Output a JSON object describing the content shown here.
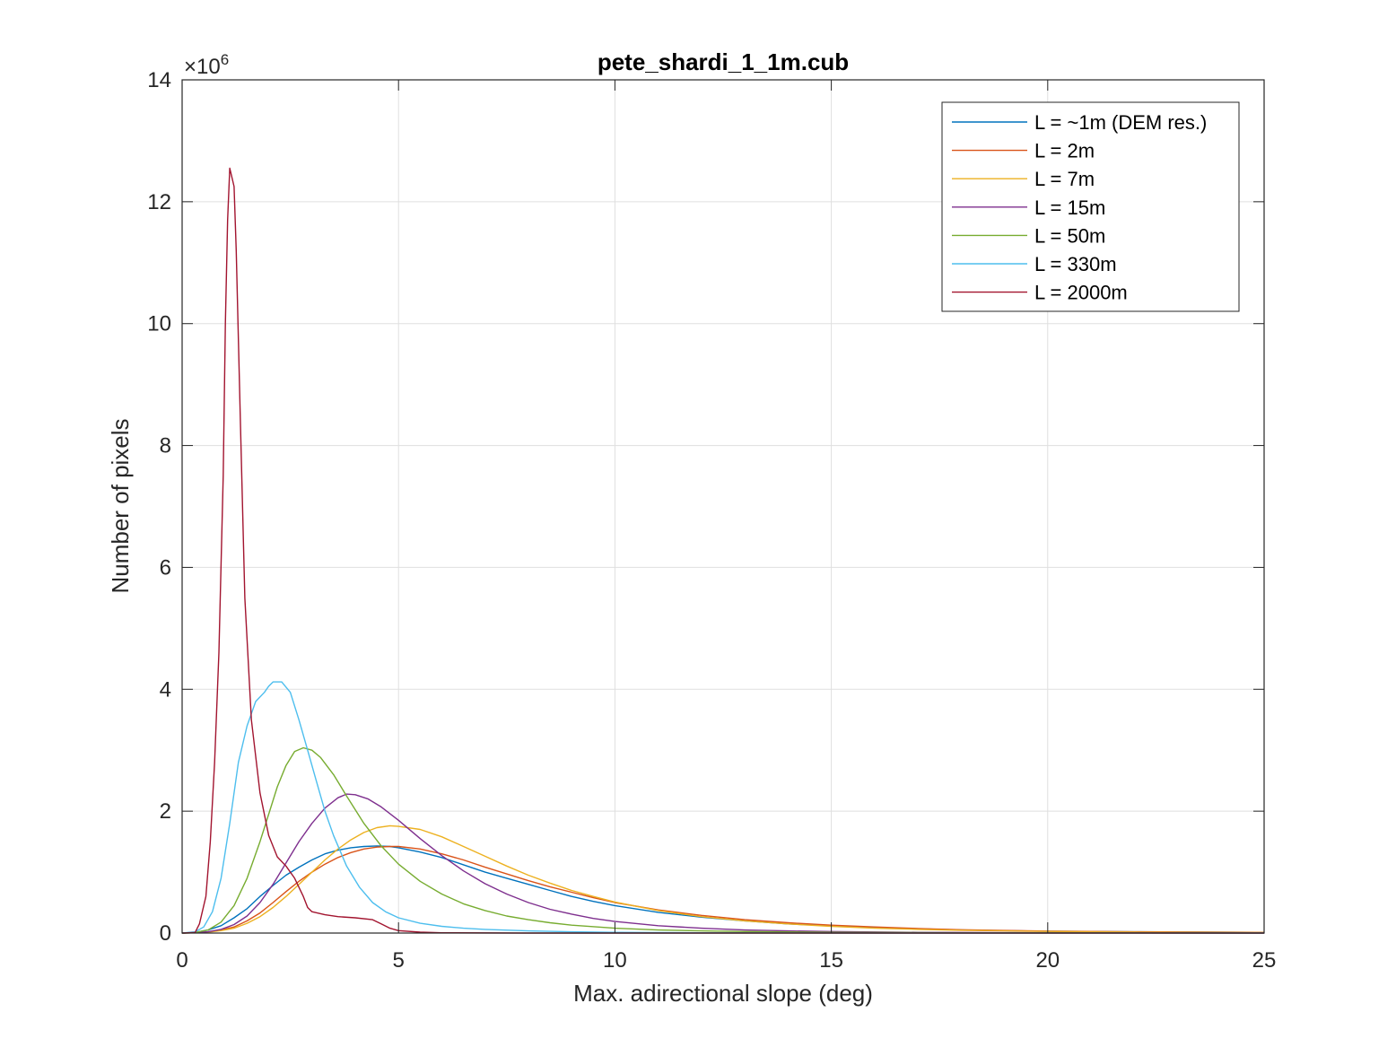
{
  "chart_data": {
    "type": "line",
    "title": "pete_shardi_1_1m.cub",
    "xlabel": "Max. adirectional slope (deg)",
    "ylabel": "Number of pixels",
    "y_multiplier": "×10",
    "y_multiplier_exponent": "6",
    "xlim": [
      0,
      25
    ],
    "ylim": [
      0,
      14
    ],
    "x_ticks": [
      0,
      5,
      10,
      15,
      20,
      25
    ],
    "y_ticks": [
      0,
      2,
      4,
      6,
      8,
      10,
      12,
      14
    ],
    "x_tick_labels": [
      "0",
      "5",
      "10",
      "15",
      "20",
      "25"
    ],
    "y_tick_labels": [
      "0",
      "2",
      "4",
      "6",
      "8",
      "10",
      "12",
      "14"
    ],
    "grid": true,
    "legend_position": "top-right",
    "series": [
      {
        "name": "L = ~1m (DEM res.)",
        "color": "#0072BD",
        "points": [
          [
            0,
            0
          ],
          [
            0.3,
            0.01
          ],
          [
            0.6,
            0.05
          ],
          [
            0.9,
            0.12
          ],
          [
            1.2,
            0.25
          ],
          [
            1.5,
            0.4
          ],
          [
            1.8,
            0.6
          ],
          [
            2.1,
            0.78
          ],
          [
            2.4,
            0.95
          ],
          [
            2.7,
            1.08
          ],
          [
            3.0,
            1.2
          ],
          [
            3.3,
            1.3
          ],
          [
            3.6,
            1.36
          ],
          [
            3.9,
            1.4
          ],
          [
            4.2,
            1.42
          ],
          [
            4.5,
            1.43
          ],
          [
            4.8,
            1.42
          ],
          [
            5.0,
            1.4
          ],
          [
            5.5,
            1.33
          ],
          [
            6.0,
            1.24
          ],
          [
            6.5,
            1.12
          ],
          [
            7.0,
            1.0
          ],
          [
            7.5,
            0.9
          ],
          [
            8.0,
            0.8
          ],
          [
            8.5,
            0.7
          ],
          [
            9.0,
            0.6
          ],
          [
            9.5,
            0.52
          ],
          [
            10.0,
            0.45
          ],
          [
            11.0,
            0.34
          ],
          [
            12.0,
            0.26
          ],
          [
            13.0,
            0.2
          ],
          [
            14.0,
            0.15
          ],
          [
            15.0,
            0.12
          ],
          [
            16.0,
            0.09
          ],
          [
            17.0,
            0.07
          ],
          [
            18.0,
            0.05
          ],
          [
            19.0,
            0.04
          ],
          [
            20.0,
            0.03
          ],
          [
            22.0,
            0.02
          ],
          [
            25.0,
            0.01
          ]
        ]
      },
      {
        "name": "L = 2m",
        "color": "#D95319",
        "points": [
          [
            0,
            0
          ],
          [
            0.3,
            0.005
          ],
          [
            0.6,
            0.02
          ],
          [
            0.9,
            0.05
          ],
          [
            1.2,
            0.1
          ],
          [
            1.5,
            0.2
          ],
          [
            1.8,
            0.33
          ],
          [
            2.1,
            0.5
          ],
          [
            2.4,
            0.68
          ],
          [
            2.7,
            0.85
          ],
          [
            3.0,
            1.0
          ],
          [
            3.3,
            1.13
          ],
          [
            3.6,
            1.24
          ],
          [
            3.9,
            1.32
          ],
          [
            4.2,
            1.38
          ],
          [
            4.5,
            1.41
          ],
          [
            4.8,
            1.42
          ],
          [
            5.0,
            1.42
          ],
          [
            5.5,
            1.38
          ],
          [
            6.0,
            1.3
          ],
          [
            6.5,
            1.2
          ],
          [
            7.0,
            1.08
          ],
          [
            7.5,
            0.97
          ],
          [
            8.0,
            0.86
          ],
          [
            8.5,
            0.76
          ],
          [
            9.0,
            0.67
          ],
          [
            9.5,
            0.58
          ],
          [
            10.0,
            0.5
          ],
          [
            11.0,
            0.38
          ],
          [
            12.0,
            0.29
          ],
          [
            13.0,
            0.22
          ],
          [
            14.0,
            0.17
          ],
          [
            15.0,
            0.13
          ],
          [
            16.0,
            0.1
          ],
          [
            17.0,
            0.075
          ],
          [
            18.0,
            0.055
          ],
          [
            19.0,
            0.042
          ],
          [
            20.0,
            0.032
          ],
          [
            22.0,
            0.02
          ],
          [
            25.0,
            0.01
          ]
        ]
      },
      {
        "name": "L = 7m",
        "color": "#EDB120",
        "points": [
          [
            0,
            0
          ],
          [
            0.3,
            0.005
          ],
          [
            0.6,
            0.015
          ],
          [
            0.9,
            0.04
          ],
          [
            1.2,
            0.08
          ],
          [
            1.5,
            0.16
          ],
          [
            1.8,
            0.27
          ],
          [
            2.1,
            0.42
          ],
          [
            2.4,
            0.6
          ],
          [
            2.7,
            0.8
          ],
          [
            3.0,
            1.0
          ],
          [
            3.3,
            1.2
          ],
          [
            3.6,
            1.38
          ],
          [
            3.9,
            1.53
          ],
          [
            4.2,
            1.65
          ],
          [
            4.5,
            1.73
          ],
          [
            4.8,
            1.76
          ],
          [
            5.0,
            1.75
          ],
          [
            5.5,
            1.7
          ],
          [
            6.0,
            1.58
          ],
          [
            6.5,
            1.42
          ],
          [
            7.0,
            1.26
          ],
          [
            7.5,
            1.1
          ],
          [
            8.0,
            0.95
          ],
          [
            8.5,
            0.82
          ],
          [
            9.0,
            0.7
          ],
          [
            9.5,
            0.6
          ],
          [
            10.0,
            0.51
          ],
          [
            11.0,
            0.37
          ],
          [
            12.0,
            0.27
          ],
          [
            13.0,
            0.2
          ],
          [
            14.0,
            0.15
          ],
          [
            15.0,
            0.11
          ],
          [
            16.0,
            0.08
          ],
          [
            17.0,
            0.06
          ],
          [
            18.0,
            0.045
          ],
          [
            19.0,
            0.035
          ],
          [
            20.0,
            0.026
          ],
          [
            22.0,
            0.015
          ],
          [
            25.0,
            0.008
          ]
        ]
      },
      {
        "name": "L = 15m",
        "color": "#7E2F8E",
        "points": [
          [
            0,
            0
          ],
          [
            0.3,
            0.005
          ],
          [
            0.6,
            0.02
          ],
          [
            0.9,
            0.06
          ],
          [
            1.2,
            0.14
          ],
          [
            1.5,
            0.28
          ],
          [
            1.8,
            0.5
          ],
          [
            2.1,
            0.8
          ],
          [
            2.4,
            1.15
          ],
          [
            2.7,
            1.5
          ],
          [
            3.0,
            1.8
          ],
          [
            3.3,
            2.05
          ],
          [
            3.6,
            2.22
          ],
          [
            3.8,
            2.28
          ],
          [
            4.0,
            2.27
          ],
          [
            4.3,
            2.2
          ],
          [
            4.6,
            2.07
          ],
          [
            5.0,
            1.85
          ],
          [
            5.5,
            1.55
          ],
          [
            6.0,
            1.27
          ],
          [
            6.5,
            1.02
          ],
          [
            7.0,
            0.81
          ],
          [
            7.5,
            0.64
          ],
          [
            8.0,
            0.5
          ],
          [
            8.5,
            0.39
          ],
          [
            9.0,
            0.31
          ],
          [
            9.5,
            0.24
          ],
          [
            10.0,
            0.19
          ],
          [
            11.0,
            0.12
          ],
          [
            12.0,
            0.08
          ],
          [
            13.0,
            0.05
          ],
          [
            14.0,
            0.035
          ],
          [
            15.0,
            0.025
          ],
          [
            17.0,
            0.012
          ],
          [
            20.0,
            0.005
          ],
          [
            25.0,
            0.002
          ]
        ]
      },
      {
        "name": "L = 50m",
        "color": "#77AC30",
        "points": [
          [
            0,
            0
          ],
          [
            0.3,
            0.01
          ],
          [
            0.6,
            0.05
          ],
          [
            0.9,
            0.18
          ],
          [
            1.2,
            0.45
          ],
          [
            1.5,
            0.9
          ],
          [
            1.8,
            1.5
          ],
          [
            2.0,
            1.95
          ],
          [
            2.2,
            2.4
          ],
          [
            2.4,
            2.75
          ],
          [
            2.6,
            2.98
          ],
          [
            2.8,
            3.04
          ],
          [
            3.0,
            3.0
          ],
          [
            3.2,
            2.88
          ],
          [
            3.5,
            2.6
          ],
          [
            3.8,
            2.25
          ],
          [
            4.2,
            1.8
          ],
          [
            4.6,
            1.43
          ],
          [
            5.0,
            1.13
          ],
          [
            5.5,
            0.85
          ],
          [
            6.0,
            0.64
          ],
          [
            6.5,
            0.48
          ],
          [
            7.0,
            0.37
          ],
          [
            7.5,
            0.28
          ],
          [
            8.0,
            0.22
          ],
          [
            8.5,
            0.17
          ],
          [
            9.0,
            0.13
          ],
          [
            10.0,
            0.08
          ],
          [
            11.0,
            0.05
          ],
          [
            12.0,
            0.035
          ],
          [
            13.0,
            0.025
          ],
          [
            15.0,
            0.012
          ],
          [
            18.0,
            0.005
          ],
          [
            25.0,
            0.001
          ]
        ]
      },
      {
        "name": "L = 330m",
        "color": "#4DBEEE",
        "points": [
          [
            0,
            0
          ],
          [
            0.3,
            0.02
          ],
          [
            0.5,
            0.1
          ],
          [
            0.7,
            0.35
          ],
          [
            0.9,
            0.9
          ],
          [
            1.1,
            1.8
          ],
          [
            1.3,
            2.8
          ],
          [
            1.5,
            3.4
          ],
          [
            1.7,
            3.8
          ],
          [
            1.9,
            3.95
          ],
          [
            2.0,
            4.05
          ],
          [
            2.1,
            4.12
          ],
          [
            2.3,
            4.12
          ],
          [
            2.5,
            3.95
          ],
          [
            2.7,
            3.5
          ],
          [
            2.9,
            3.0
          ],
          [
            3.1,
            2.5
          ],
          [
            3.3,
            2.0
          ],
          [
            3.5,
            1.6
          ],
          [
            3.8,
            1.1
          ],
          [
            4.1,
            0.75
          ],
          [
            4.4,
            0.5
          ],
          [
            4.7,
            0.35
          ],
          [
            5.0,
            0.25
          ],
          [
            5.5,
            0.16
          ],
          [
            6.0,
            0.11
          ],
          [
            6.5,
            0.08
          ],
          [
            7.0,
            0.06
          ],
          [
            8.0,
            0.035
          ],
          [
            9.0,
            0.02
          ],
          [
            10.0,
            0.012
          ],
          [
            12.0,
            0.005
          ],
          [
            15.0,
            0.002
          ],
          [
            25.0,
            0.0
          ]
        ]
      },
      {
        "name": "L = 2000m",
        "color": "#A2142F",
        "points": [
          [
            0,
            0
          ],
          [
            0.3,
            0.01
          ],
          [
            0.4,
            0.15
          ],
          [
            0.55,
            0.6
          ],
          [
            0.65,
            1.5
          ],
          [
            0.75,
            2.8
          ],
          [
            0.85,
            4.6
          ],
          [
            0.95,
            7.5
          ],
          [
            1.0,
            10.0
          ],
          [
            1.05,
            11.7
          ],
          [
            1.1,
            12.55
          ],
          [
            1.15,
            12.4
          ],
          [
            1.2,
            12.25
          ],
          [
            1.25,
            11.2
          ],
          [
            1.35,
            8.3
          ],
          [
            1.45,
            5.5
          ],
          [
            1.6,
            3.5
          ],
          [
            1.8,
            2.3
          ],
          [
            2.0,
            1.6
          ],
          [
            2.2,
            1.25
          ],
          [
            2.4,
            1.1
          ],
          [
            2.6,
            0.9
          ],
          [
            2.8,
            0.6
          ],
          [
            2.9,
            0.42
          ],
          [
            3.0,
            0.35
          ],
          [
            3.3,
            0.3
          ],
          [
            3.6,
            0.27
          ],
          [
            4.0,
            0.25
          ],
          [
            4.4,
            0.22
          ],
          [
            4.6,
            0.15
          ],
          [
            4.8,
            0.08
          ],
          [
            5.0,
            0.04
          ],
          [
            5.5,
            0.015
          ],
          [
            6.0,
            0.005
          ],
          [
            8.0,
            0.0
          ],
          [
            25.0,
            0.0
          ]
        ]
      }
    ]
  }
}
